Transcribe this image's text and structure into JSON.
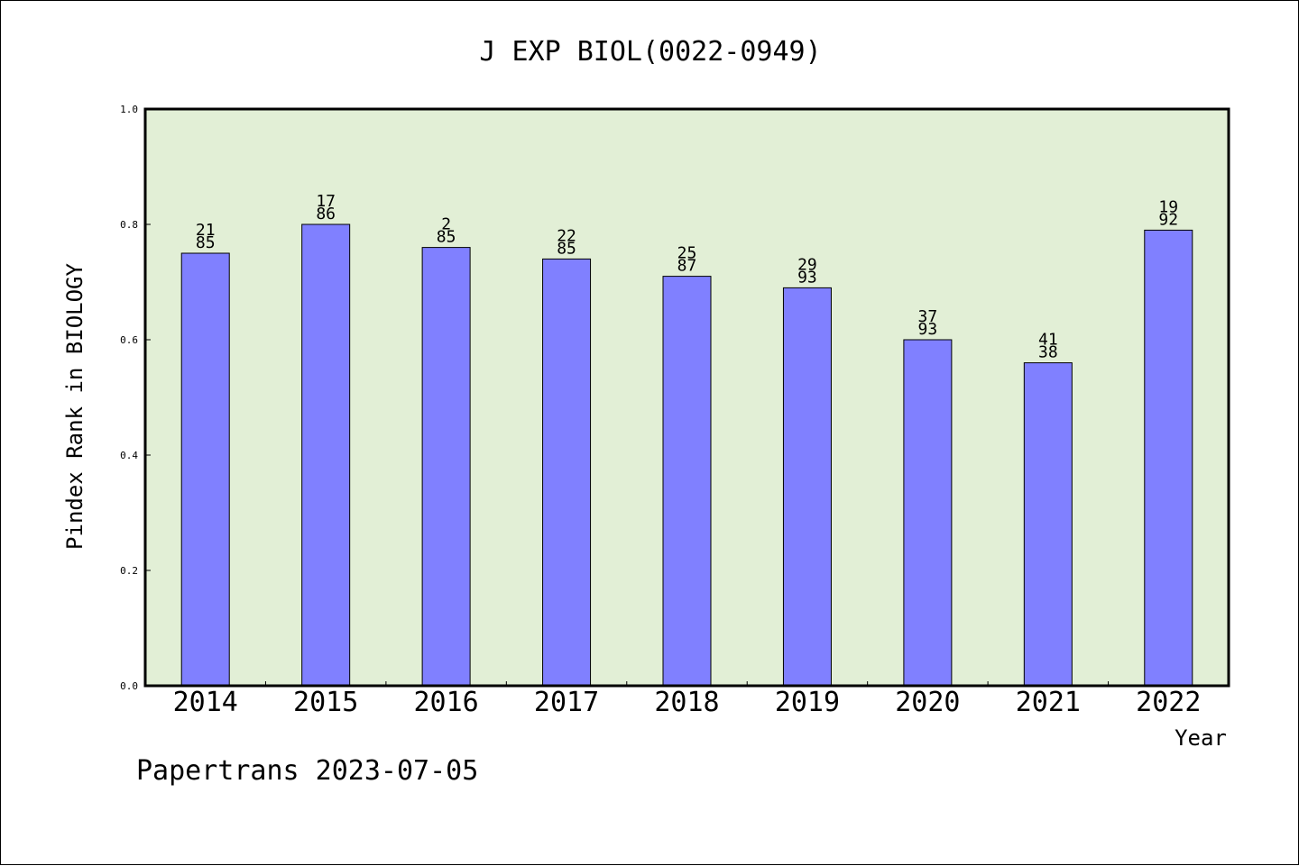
{
  "chart_data": {
    "type": "bar",
    "title": "J EXP BIOL(0022-0949)",
    "xlabel": "Year",
    "ylabel": "Pindex Rank in BIOLOGY",
    "ylim": [
      0,
      1.0
    ],
    "yticks": [
      "0.0",
      "0.2",
      "0.4",
      "0.6",
      "0.8",
      "1.0"
    ],
    "categories": [
      "2014",
      "2015",
      "2016",
      "2017",
      "2018",
      "2019",
      "2020",
      "2021",
      "2022"
    ],
    "values": [
      0.75,
      0.8,
      0.76,
      0.74,
      0.71,
      0.69,
      0.6,
      0.56,
      0.79
    ],
    "labels_top": [
      "21",
      "17",
      "2",
      "22",
      "25",
      "29",
      "37",
      "41",
      "19"
    ],
    "labels_bottom": [
      "85",
      "86",
      "85",
      "85",
      "87",
      "93",
      "93",
      "38",
      "92"
    ],
    "bar_color": "#8080ff",
    "plot_bg": "#e2efd6",
    "grid": false
  },
  "footer": {
    "text": "Papertrans 2023-07-05"
  }
}
